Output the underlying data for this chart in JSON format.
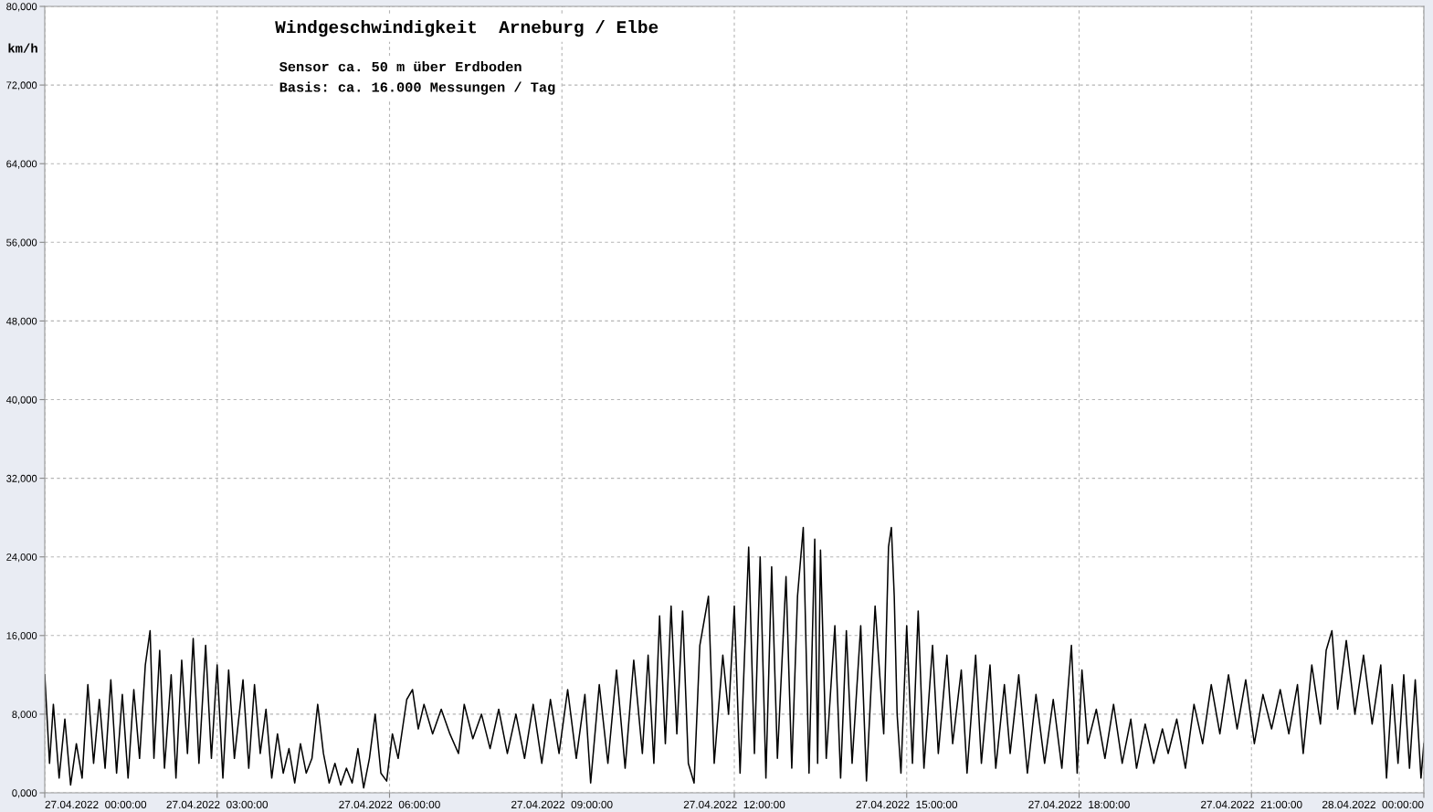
{
  "chart_data": {
    "type": "line",
    "title": "Windgeschwindigkeit  Arneburg / Elbe",
    "subtitle": "Sensor ca. 50 m über Erdboden",
    "annotations": [
      "Basis: ca. 16.000 Messungen / Tag"
    ],
    "ylabel": "km/h",
    "xlim": [
      "2022-04-27T00:00",
      "2022-04-28T00:00"
    ],
    "xticks": [
      {
        "value": "2022-04-27T00:00",
        "label": "27.04.2022  00:00:00"
      },
      {
        "value": "2022-04-27T03:00",
        "label": "27.04.2022  03:00:00"
      },
      {
        "value": "2022-04-27T06:00",
        "label": "27.04.2022  06:00:00"
      },
      {
        "value": "2022-04-27T09:00",
        "label": "27.04.2022  09:00:00"
      },
      {
        "value": "2022-04-27T12:00",
        "label": "27.04.2022  12:00:00"
      },
      {
        "value": "2022-04-27T15:00",
        "label": "27.04.2022  15:00:00"
      },
      {
        "value": "2022-04-27T18:00",
        "label": "27.04.2022  18:00:00"
      },
      {
        "value": "2022-04-27T21:00",
        "label": "27.04.2022  21:00:00"
      },
      {
        "value": "2022-04-28T00:00",
        "label": "28.04.2022  00:00:00"
      }
    ],
    "ylim": [
      0,
      80000
    ],
    "yticks": [
      {
        "value": 0,
        "label": "0,000"
      },
      {
        "value": 8000,
        "label": "8,000"
      },
      {
        "value": 16000,
        "label": "16,000"
      },
      {
        "value": 24000,
        "label": "24,000"
      },
      {
        "value": 32000,
        "label": "32,000"
      },
      {
        "value": 40000,
        "label": "40,000"
      },
      {
        "value": 48000,
        "label": "48,000"
      },
      {
        "value": 56000,
        "label": "56,000"
      },
      {
        "value": 64000,
        "label": "64,000"
      },
      {
        "value": 72000,
        "label": "72,000"
      },
      {
        "value": 80000,
        "label": "80,000"
      }
    ],
    "grid": true,
    "marker": "none",
    "line_style": "solid",
    "series": [
      {
        "color": "#000000",
        "x": [
          "2022-04-27T00:00",
          "2022-04-27T00:05",
          "2022-04-27T00:09",
          "2022-04-27T00:15",
          "2022-04-27T00:21",
          "2022-04-27T00:27",
          "2022-04-27T00:33",
          "2022-04-27T00:39",
          "2022-04-27T00:45",
          "2022-04-27T00:51",
          "2022-04-27T00:57",
          "2022-04-27T01:03",
          "2022-04-27T01:09",
          "2022-04-27T01:15",
          "2022-04-27T01:21",
          "2022-04-27T01:27",
          "2022-04-27T01:33",
          "2022-04-27T01:39",
          "2022-04-27T01:45",
          "2022-04-27T01:50",
          "2022-04-27T01:54",
          "2022-04-27T02:00",
          "2022-04-27T02:05",
          "2022-04-27T02:12",
          "2022-04-27T02:17",
          "2022-04-27T02:23",
          "2022-04-27T02:29",
          "2022-04-27T02:35",
          "2022-04-27T02:41",
          "2022-04-27T02:48",
          "2022-04-27T02:54",
          "2022-04-27T03:00",
          "2022-04-27T03:06",
          "2022-04-27T03:12",
          "2022-04-27T03:18",
          "2022-04-27T03:27",
          "2022-04-27T03:33",
          "2022-04-27T03:39",
          "2022-04-27T03:45",
          "2022-04-27T03:51",
          "2022-04-27T03:57",
          "2022-04-27T04:03",
          "2022-04-27T04:09",
          "2022-04-27T04:15",
          "2022-04-27T04:21",
          "2022-04-27T04:27",
          "2022-04-27T04:33",
          "2022-04-27T04:39",
          "2022-04-27T04:45",
          "2022-04-27T04:51",
          "2022-04-27T04:57",
          "2022-04-27T05:03",
          "2022-04-27T05:09",
          "2022-04-27T05:15",
          "2022-04-27T05:21",
          "2022-04-27T05:27",
          "2022-04-27T05:33",
          "2022-04-27T05:39",
          "2022-04-27T05:45",
          "2022-04-27T05:51",
          "2022-04-27T05:57",
          "2022-04-27T06:03",
          "2022-04-27T06:09",
          "2022-04-27T06:18",
          "2022-04-27T06:24",
          "2022-04-27T06:30",
          "2022-04-27T06:36",
          "2022-04-27T06:45",
          "2022-04-27T06:54",
          "2022-04-27T07:03",
          "2022-04-27T07:12",
          "2022-04-27T07:18",
          "2022-04-27T07:27",
          "2022-04-27T07:36",
          "2022-04-27T07:45",
          "2022-04-27T07:54",
          "2022-04-27T08:03",
          "2022-04-27T08:12",
          "2022-04-27T08:21",
          "2022-04-27T08:30",
          "2022-04-27T08:39",
          "2022-04-27T08:48",
          "2022-04-27T08:57",
          "2022-04-27T09:06",
          "2022-04-27T09:15",
          "2022-04-27T09:24",
          "2022-04-27T09:30",
          "2022-04-27T09:39",
          "2022-04-27T09:48",
          "2022-04-27T09:57",
          "2022-04-27T10:06",
          "2022-04-27T10:15",
          "2022-04-27T10:24",
          "2022-04-27T10:30",
          "2022-04-27T10:36",
          "2022-04-27T10:42",
          "2022-04-27T10:48",
          "2022-04-27T10:54",
          "2022-04-27T11:00",
          "2022-04-27T11:06",
          "2022-04-27T11:12",
          "2022-04-27T11:18",
          "2022-04-27T11:24",
          "2022-04-27T11:33",
          "2022-04-27T11:39",
          "2022-04-27T11:48",
          "2022-04-27T11:54",
          "2022-04-27T12:00",
          "2022-04-27T12:06",
          "2022-04-27T12:15",
          "2022-04-27T12:21",
          "2022-04-27T12:27",
          "2022-04-27T12:33",
          "2022-04-27T12:39",
          "2022-04-27T12:45",
          "2022-04-27T12:54",
          "2022-04-27T13:00",
          "2022-04-27T13:06",
          "2022-04-27T13:12",
          "2022-04-27T13:18",
          "2022-04-27T13:24",
          "2022-04-27T13:27",
          "2022-04-27T13:30",
          "2022-04-27T13:36",
          "2022-04-27T13:45",
          "2022-04-27T13:51",
          "2022-04-27T13:57",
          "2022-04-27T14:03",
          "2022-04-27T14:12",
          "2022-04-27T14:18",
          "2022-04-27T14:27",
          "2022-04-27T14:36",
          "2022-04-27T14:41",
          "2022-04-27T14:44",
          "2022-04-27T14:47",
          "2022-04-27T14:50",
          "2022-04-27T14:54",
          "2022-04-27T15:00",
          "2022-04-27T15:06",
          "2022-04-27T15:12",
          "2022-04-27T15:18",
          "2022-04-27T15:27",
          "2022-04-27T15:33",
          "2022-04-27T15:42",
          "2022-04-27T15:48",
          "2022-04-27T15:57",
          "2022-04-27T16:03",
          "2022-04-27T16:12",
          "2022-04-27T16:18",
          "2022-04-27T16:27",
          "2022-04-27T16:33",
          "2022-04-27T16:42",
          "2022-04-27T16:48",
          "2022-04-27T16:57",
          "2022-04-27T17:06",
          "2022-04-27T17:15",
          "2022-04-27T17:24",
          "2022-04-27T17:33",
          "2022-04-27T17:42",
          "2022-04-27T17:52",
          "2022-04-27T17:58",
          "2022-04-27T18:03",
          "2022-04-27T18:09",
          "2022-04-27T18:18",
          "2022-04-27T18:27",
          "2022-04-27T18:36",
          "2022-04-27T18:45",
          "2022-04-27T18:54",
          "2022-04-27T19:00",
          "2022-04-27T19:09",
          "2022-04-27T19:18",
          "2022-04-27T19:27",
          "2022-04-27T19:33",
          "2022-04-27T19:42",
          "2022-04-27T19:51",
          "2022-04-27T20:00",
          "2022-04-27T20:09",
          "2022-04-27T20:18",
          "2022-04-27T20:27",
          "2022-04-27T20:36",
          "2022-04-27T20:45",
          "2022-04-27T20:54",
          "2022-04-27T21:03",
          "2022-04-27T21:12",
          "2022-04-27T21:21",
          "2022-04-27T21:30",
          "2022-04-27T21:39",
          "2022-04-27T21:48",
          "2022-04-27T21:54",
          "2022-04-27T22:03",
          "2022-04-27T22:12",
          "2022-04-27T22:18",
          "2022-04-27T22:24",
          "2022-04-27T22:30",
          "2022-04-27T22:39",
          "2022-04-27T22:48",
          "2022-04-27T22:57",
          "2022-04-27T23:06",
          "2022-04-27T23:15",
          "2022-04-27T23:21",
          "2022-04-27T23:27",
          "2022-04-27T23:33",
          "2022-04-27T23:39",
          "2022-04-27T23:45",
          "2022-04-27T23:51",
          "2022-04-27T23:57",
          "2022-04-28T00:00"
        ],
        "values": [
          12000,
          3000,
          9000,
          1500,
          7500,
          800,
          5000,
          1500,
          11000,
          3000,
          9500,
          2500,
          11500,
          2000,
          10000,
          1500,
          10500,
          3500,
          13000,
          16500,
          3500,
          14500,
          2500,
          12000,
          1500,
          13500,
          4000,
          15700,
          3000,
          15000,
          3500,
          13000,
          1500,
          12500,
          3500,
          11500,
          2500,
          11000,
          4000,
          8500,
          1500,
          6000,
          2000,
          4500,
          1000,
          5000,
          2000,
          3500,
          9000,
          4000,
          1000,
          3000,
          800,
          2500,
          1000,
          4500,
          500,
          3500,
          8000,
          2000,
          1200,
          6000,
          3500,
          9500,
          10500,
          6500,
          9000,
          6000,
          8500,
          6000,
          4000,
          9000,
          5500,
          8000,
          4500,
          8500,
          4000,
          8000,
          3500,
          9000,
          3000,
          9500,
          4000,
          10500,
          3500,
          10000,
          1000,
          11000,
          3000,
          12500,
          2500,
          13500,
          4000,
          14000,
          3000,
          18000,
          5000,
          19000,
          6000,
          18500,
          3000,
          1000,
          15000,
          20000,
          3000,
          14000,
          8000,
          19000,
          2000,
          25000,
          4000,
          24000,
          1500,
          23000,
          3500,
          22000,
          2500,
          20000,
          27000,
          2000,
          25800,
          3000,
          24700,
          3500,
          17000,
          1500,
          16500,
          3000,
          17000,
          1200,
          19000,
          6000,
          25000,
          27000,
          20000,
          8000,
          2000,
          17000,
          3000,
          18500,
          2500,
          15000,
          4000,
          14000,
          5000,
          12500,
          2000,
          14000,
          3000,
          13000,
          2500,
          11000,
          4000,
          12000,
          2000,
          10000,
          3000,
          9500,
          2500,
          15000,
          2000,
          12500,
          5000,
          8500,
          3500,
          9000,
          3000,
          7500,
          2500,
          7000,
          3000,
          6500,
          4000,
          7500,
          2500,
          9000,
          5000,
          11000,
          6000,
          12000,
          6500,
          11500,
          5000,
          10000,
          6500,
          10500,
          6000,
          11000,
          4000,
          13000,
          7000,
          14500,
          16500,
          8500,
          15500,
          8000,
          14000,
          7000,
          13000,
          1500,
          11000,
          3000,
          12000,
          2500,
          11500,
          1500,
          5000
        ]
      }
    ]
  }
}
